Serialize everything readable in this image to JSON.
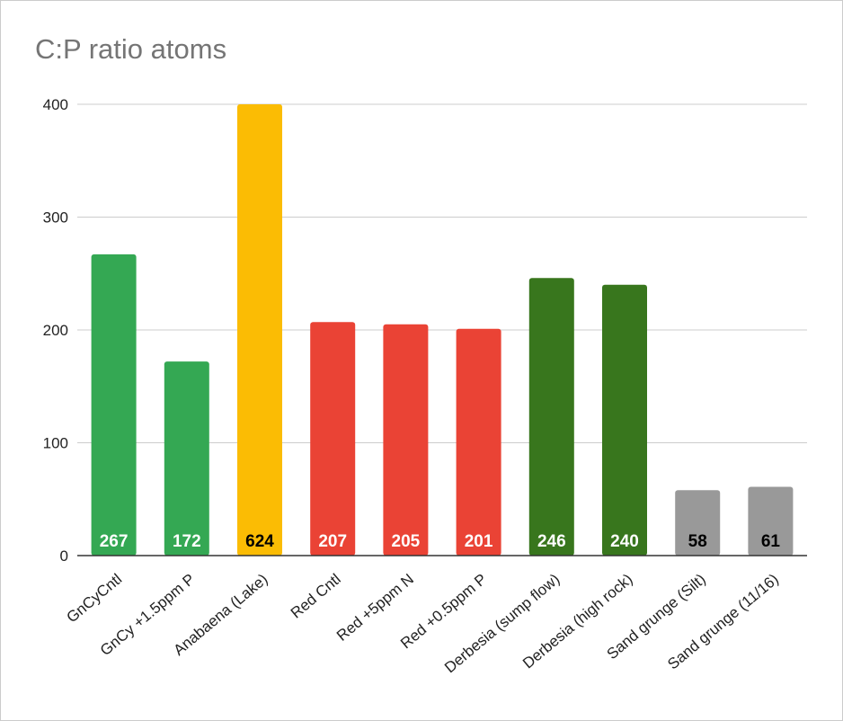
{
  "chart_data": {
    "type": "bar",
    "title": "C:P ratio atoms",
    "xlabel": "",
    "ylabel": "",
    "ylim": [
      0,
      400
    ],
    "yticks": [
      0,
      100,
      200,
      300,
      400
    ],
    "grid": true,
    "legend": "none",
    "categories": [
      "GnCyCntl",
      "GnCy +1.5ppm P",
      "Anabaena (Lake)",
      "Red Cntl",
      "Red  +5ppm N",
      "Red +0.5ppm P",
      "Derbesia (sump flow)",
      "Derbesia (high rock)",
      "Sand grunge (Silt)",
      "Sand grunge (11/16)"
    ],
    "values": [
      267,
      172,
      624,
      207,
      205,
      201,
      246,
      240,
      58,
      61
    ],
    "data_labels": [
      "267",
      "172",
      "624",
      "207",
      "205",
      "201",
      "246",
      "240",
      "58",
      "61"
    ],
    "colors": [
      "#34a853",
      "#34a853",
      "#fbbc04",
      "#ea4335",
      "#ea4335",
      "#ea4335",
      "#38761d",
      "#38761d",
      "#999999",
      "#999999"
    ],
    "label_colors": [
      "#ffffff",
      "#ffffff",
      "#000000",
      "#ffffff",
      "#ffffff",
      "#ffffff",
      "#ffffff",
      "#ffffff",
      "#000000",
      "#000000"
    ]
  }
}
